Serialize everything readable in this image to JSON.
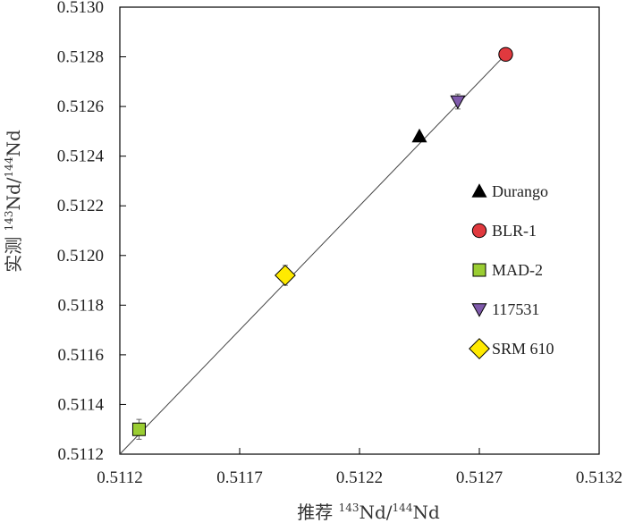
{
  "chart_data": {
    "type": "scatter",
    "xlabel": {
      "prefix": "推荐 ",
      "sup1": "143",
      "mid": "Nd/",
      "sup2": "144",
      "suffix": "Nd"
    },
    "ylabel": {
      "prefix": "实测 ",
      "sup1": "143",
      "mid": "Nd/",
      "sup2": "144",
      "suffix": "Nd"
    },
    "xlim": [
      0.5112,
      0.5132
    ],
    "ylim": [
      0.5112,
      0.513
    ],
    "x_ticks": [
      0.5112,
      0.5117,
      0.5122,
      0.5127,
      0.5132
    ],
    "x_tick_labels": [
      "0.5112",
      "0.5117",
      "0.5122",
      "0.5127",
      "0.5132"
    ],
    "y_ticks": [
      0.5112,
      0.5114,
      0.5116,
      0.5118,
      0.512,
      0.5122,
      0.5124,
      0.5126,
      0.5128,
      0.513
    ],
    "y_tick_labels": [
      "0.5112",
      "0.5114",
      "0.5116",
      "0.5118",
      "0.5120",
      "0.5122",
      "0.5124",
      "0.5126",
      "0.5128",
      "0.5130"
    ],
    "grid": false,
    "legend_position": "right",
    "reference_line": {
      "from": [
        0.5112,
        0.5112
      ],
      "to": [
        0.5128,
        0.5128
      ]
    },
    "series": [
      {
        "name": "Durango",
        "marker": "triangle-up",
        "color": "#000000",
        "x": 0.51245,
        "y": 0.51248,
        "err": 1e-05
      },
      {
        "name": "BLR-1",
        "marker": "circle",
        "color": "#e0393e",
        "x": 0.51281,
        "y": 0.51281,
        "err": 1e-05
      },
      {
        "name": "MAD-2",
        "marker": "square",
        "color": "#9acd32",
        "x": 0.51128,
        "y": 0.5113,
        "err": 4e-05
      },
      {
        "name": "117531",
        "marker": "triangle-down",
        "color": "#7f5aab",
        "x": 0.51261,
        "y": 0.51262,
        "err": 3e-05
      },
      {
        "name": "SRM 610",
        "marker": "diamond",
        "color": "#ffea00",
        "x": 0.51189,
        "y": 0.51192,
        "err": 4e-05
      }
    ]
  }
}
